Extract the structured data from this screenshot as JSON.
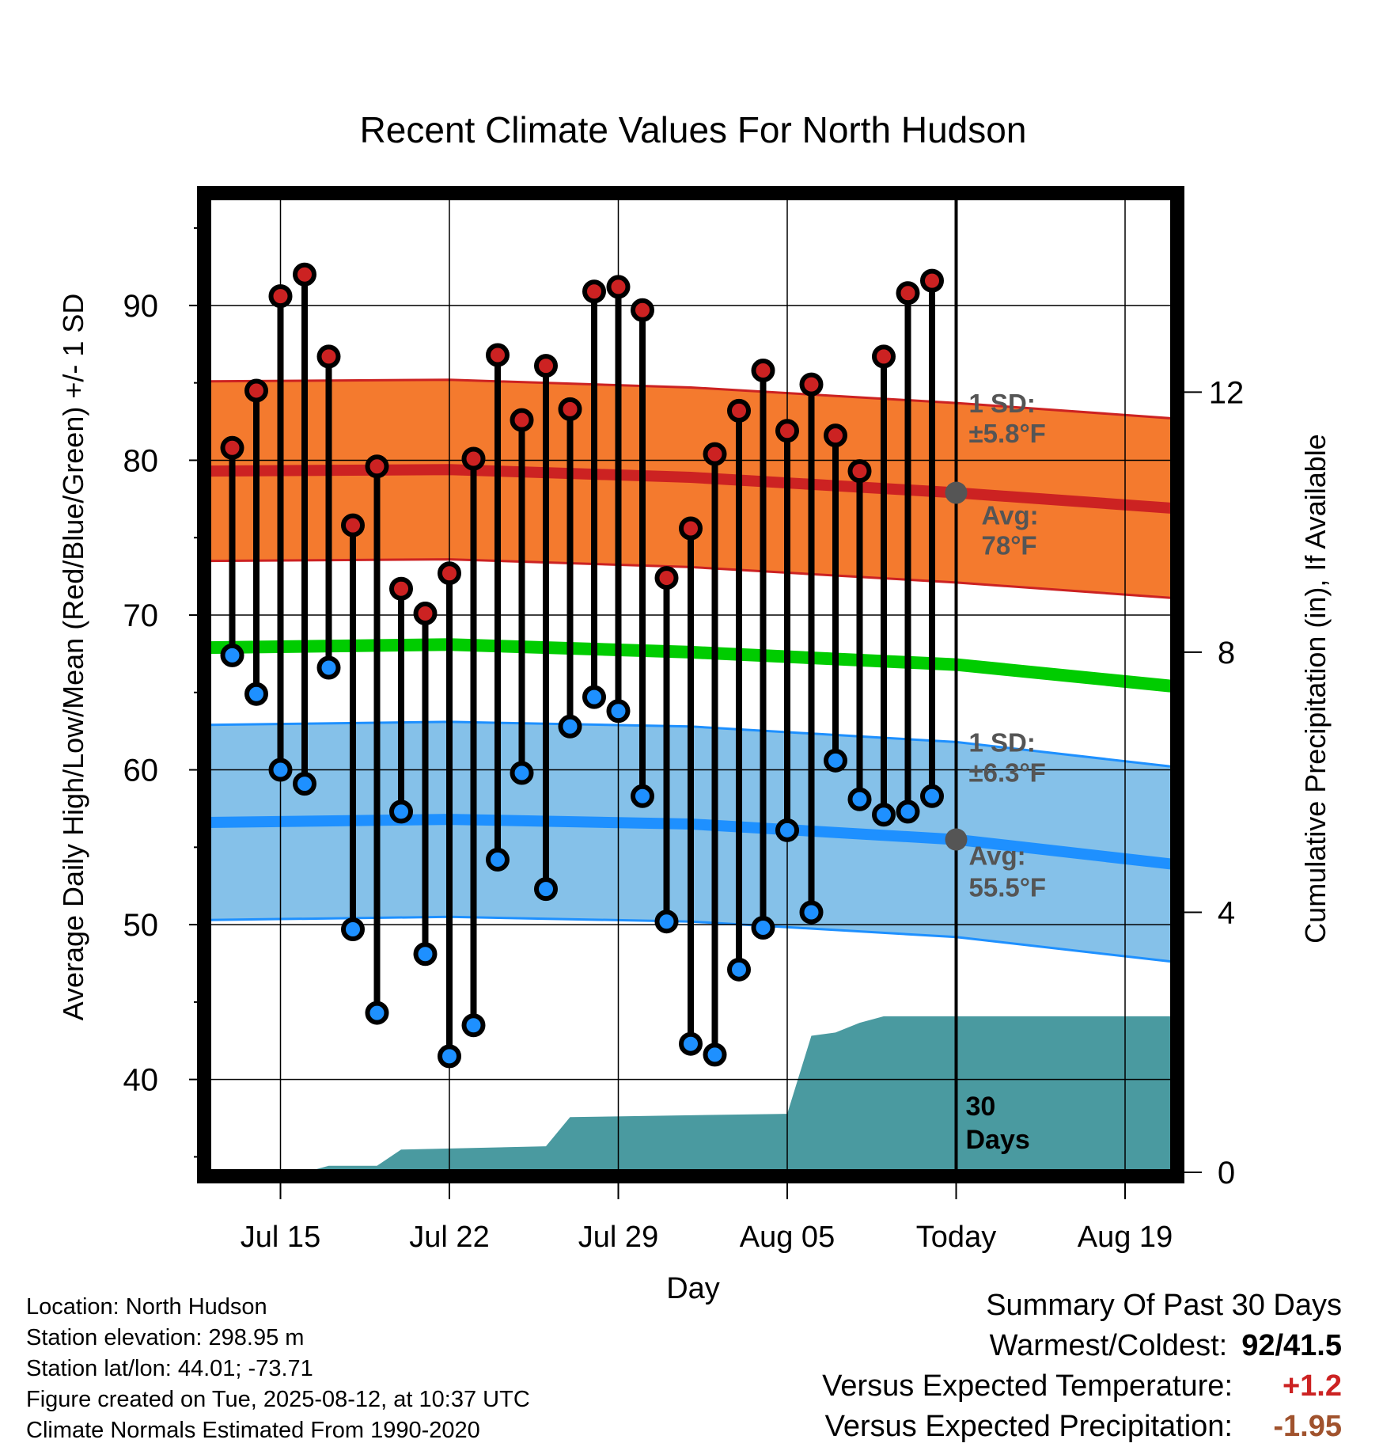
{
  "chart_data": {
    "type": "line",
    "title": "Recent Climate Values For North Hudson",
    "xlabel": "Day",
    "ylabel": "Average Daily High/Low/Mean (Red/Blue/Green) +/- 1 SD",
    "y2label": "Cumulative Precipitation (in), If Available",
    "xticks": [
      "Jul 15",
      "Jul 22",
      "Jul 29",
      "Aug 05",
      "Today",
      "Aug 19"
    ],
    "xtick_dates": [
      "2025-07-15",
      "2025-07-22",
      "2025-07-29",
      "2025-08-05",
      "2025-08-12",
      "2025-08-19"
    ],
    "x_range": [
      "2025-07-12",
      "2025-08-21"
    ],
    "ylim": [
      34,
      97
    ],
    "yticks": [
      40,
      50,
      60,
      70,
      80,
      90
    ],
    "y2lim": [
      0,
      15
    ],
    "y2ticks": [
      0,
      4,
      8,
      12
    ],
    "grid": true,
    "colors": {
      "high": "#cc2222",
      "low": "#1e90ff",
      "high_band": "#f47a2e",
      "low_band": "#85c1e9",
      "mean": "#00cc00",
      "precip": "#4a9aa0"
    },
    "dates": [
      "2025-07-13",
      "2025-07-14",
      "2025-07-15",
      "2025-07-16",
      "2025-07-17",
      "2025-07-18",
      "2025-07-19",
      "2025-07-20",
      "2025-07-21",
      "2025-07-22",
      "2025-07-23",
      "2025-07-24",
      "2025-07-25",
      "2025-07-26",
      "2025-07-27",
      "2025-07-28",
      "2025-07-29",
      "2025-07-30",
      "2025-07-31",
      "2025-08-01",
      "2025-08-02",
      "2025-08-03",
      "2025-08-04",
      "2025-08-05",
      "2025-08-06",
      "2025-08-07",
      "2025-08-08",
      "2025-08-09",
      "2025-08-10",
      "2025-08-11"
    ],
    "series": [
      {
        "name": "High",
        "values": [
          80.8,
          84.5,
          90.6,
          92.0,
          86.7,
          75.8,
          79.6,
          71.7,
          70.1,
          72.7,
          80.1,
          86.8,
          82.6,
          86.1,
          83.3,
          90.9,
          91.2,
          89.7,
          72.4,
          75.6,
          80.4,
          83.2,
          85.8,
          81.9,
          84.9,
          81.6,
          79.3,
          86.7,
          90.8,
          91.6
        ]
      },
      {
        "name": "Low",
        "values": [
          67.4,
          64.9,
          60.0,
          59.1,
          66.6,
          49.7,
          44.3,
          57.3,
          48.1,
          41.5,
          43.5,
          54.2,
          59.8,
          52.3,
          62.8,
          64.7,
          63.8,
          58.3,
          50.2,
          42.3,
          41.6,
          47.1,
          49.8,
          56.1,
          50.8,
          60.6,
          58.1,
          57.1,
          57.3,
          58.3
        ]
      }
    ],
    "normals": {
      "dates": [
        "2025-07-12",
        "2025-07-22",
        "2025-08-01",
        "2025-08-12",
        "2025-08-21"
      ],
      "high_avg": [
        79.3,
        79.4,
        78.9,
        77.9,
        76.9
      ],
      "high_sd": 5.8,
      "low_avg": [
        56.6,
        56.8,
        56.5,
        55.5,
        53.9
      ],
      "low_sd": 6.3,
      "mean_avg": [
        67.9,
        68.1,
        67.6,
        66.8,
        65.4
      ]
    },
    "precip_cumulative": {
      "dates": [
        "2025-07-12",
        "2025-07-16",
        "2025-07-17",
        "2025-07-19",
        "2025-07-20",
        "2025-07-26",
        "2025-07-27",
        "2025-08-05",
        "2025-08-06",
        "2025-08-07",
        "2025-08-08",
        "2025-08-09",
        "2025-08-12",
        "2025-08-21"
      ],
      "values": [
        0.0,
        0.0,
        0.1,
        0.1,
        0.35,
        0.4,
        0.85,
        0.9,
        2.1,
        2.15,
        2.3,
        2.4,
        2.4,
        2.4
      ]
    },
    "annotations": {
      "high_sd_line1": "1 SD:",
      "high_sd_line2": "±5.8°F",
      "high_avg_line1": "Avg:",
      "high_avg_line2": "78°F",
      "low_sd_line1": "1 SD:",
      "low_sd_line2": "±6.3°F",
      "low_avg_line1": "Avg:",
      "low_avg_line2": "55.5°F",
      "days_line1": "30",
      "days_line2": "Days"
    }
  },
  "info": {
    "location": "Location: North Hudson",
    "elevation": "Station elevation: 298.95 m",
    "latlon": "Station lat/lon: 44.01; -73.71",
    "created": "Figure created on Tue, 2025-08-12, at 10:37 UTC",
    "normals": "Climate Normals Estimated From 1990-2020"
  },
  "summary": {
    "title": "Summary Of Past 30 Days",
    "warm_cold_label": "Warmest/Coldest:",
    "warm_cold_value": "92/41.5",
    "temp_label": "Versus Expected Temperature:",
    "temp_value": "+1.2",
    "temp_color": "#cc2222",
    "precip_label": "Versus Expected Precipitation:",
    "precip_value": "-1.95",
    "precip_color": "#a0522d"
  }
}
